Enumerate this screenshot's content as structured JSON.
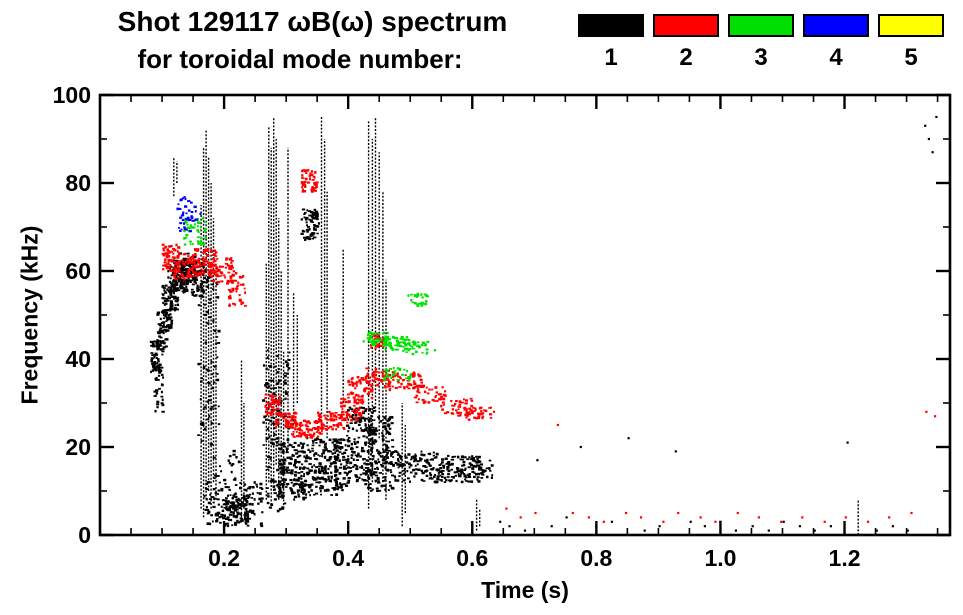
{
  "chart_data": {
    "type": "scatter",
    "title_line1": "Shot 129117 ωB(ω) spectrum",
    "title_line2": "for toroidal mode number:",
    "xlabel": "Time (s)",
    "ylabel": "Frequency (kHz)",
    "xlim": [
      0.0,
      1.37
    ],
    "ylim": [
      0,
      100
    ],
    "grid": false,
    "legend_position": "top-right",
    "xticks": {
      "major": [
        0.2,
        0.4,
        0.6,
        0.8,
        1.0,
        1.2
      ],
      "labels": [
        "0.2",
        "0.4",
        "0.6",
        "0.8",
        "1.0",
        "1.2"
      ],
      "minor_step": 0.05
    },
    "yticks": {
      "major": [
        0,
        20,
        40,
        60,
        80,
        100
      ],
      "labels": [
        "0",
        "20",
        "40",
        "60",
        "80",
        "100"
      ],
      "minor_step": 10
    },
    "legend": [
      {
        "label": "1",
        "color": "#000000"
      },
      {
        "label": "2",
        "color": "#ff0000"
      },
      {
        "label": "3",
        "color": "#00e000"
      },
      {
        "label": "4",
        "color": "#0000ff"
      },
      {
        "label": "5",
        "color": "#ffff00"
      }
    ],
    "series": [
      {
        "name": "mode-1",
        "color": "#000000",
        "blobs": [
          [
            0.082,
            0.097,
            37,
            44,
            45
          ],
          [
            0.088,
            0.102,
            28,
            39,
            35
          ],
          [
            0.092,
            0.108,
            41,
            51,
            55
          ],
          [
            0.101,
            0.116,
            46,
            57,
            65
          ],
          [
            0.11,
            0.126,
            51,
            61,
            70
          ],
          [
            0.118,
            0.142,
            55,
            63,
            90
          ],
          [
            0.13,
            0.156,
            57,
            64,
            80
          ],
          [
            0.148,
            0.17,
            54,
            63,
            60
          ],
          [
            0.158,
            0.192,
            20,
            62,
            70
          ],
          [
            0.168,
            0.262,
            2,
            12,
            160
          ],
          [
            0.198,
            0.238,
            3,
            9,
            70
          ],
          [
            0.178,
            0.225,
            12,
            20,
            20
          ],
          [
            0.263,
            0.306,
            20,
            42,
            90
          ],
          [
            0.27,
            0.302,
            5,
            18,
            40
          ],
          [
            0.288,
            0.332,
            8,
            21,
            160
          ],
          [
            0.328,
            0.382,
            9,
            22,
            170
          ],
          [
            0.378,
            0.402,
            10,
            22,
            80
          ],
          [
            0.325,
            0.353,
            67,
            74,
            70
          ],
          [
            0.398,
            0.442,
            12,
            29,
            160
          ],
          [
            0.428,
            0.472,
            10,
            27,
            160
          ],
          [
            0.468,
            0.552,
            12,
            19,
            130
          ],
          [
            0.548,
            0.618,
            12,
            18,
            110
          ],
          [
            0.6,
            0.635,
            13,
            17,
            30
          ]
        ],
        "vlines": [
          [
            0.119,
            77,
            86
          ],
          [
            0.124,
            80,
            85
          ],
          [
            0.163,
            6,
            75
          ],
          [
            0.167,
            4,
            88
          ],
          [
            0.171,
            8,
            92
          ],
          [
            0.175,
            10,
            86
          ],
          [
            0.179,
            6,
            80
          ],
          [
            0.183,
            12,
            72
          ],
          [
            0.187,
            8,
            62
          ],
          [
            0.228,
            4,
            40
          ],
          [
            0.232,
            6,
            30
          ],
          [
            0.268,
            8,
            62
          ],
          [
            0.272,
            12,
            93
          ],
          [
            0.276,
            6,
            88
          ],
          [
            0.28,
            10,
            95
          ],
          [
            0.284,
            16,
            90
          ],
          [
            0.288,
            8,
            72
          ],
          [
            0.292,
            12,
            60
          ],
          [
            0.296,
            6,
            42
          ],
          [
            0.303,
            20,
            88
          ],
          [
            0.312,
            25,
            55
          ],
          [
            0.318,
            30,
            50
          ],
          [
            0.357,
            25,
            95
          ],
          [
            0.362,
            40,
            90
          ],
          [
            0.366,
            22,
            78
          ],
          [
            0.392,
            30,
            65
          ],
          [
            0.433,
            6,
            94
          ],
          [
            0.439,
            12,
            90
          ],
          [
            0.444,
            28,
            95
          ],
          [
            0.45,
            22,
            87
          ],
          [
            0.456,
            12,
            78
          ],
          [
            0.461,
            8,
            58
          ],
          [
            0.487,
            2,
            30
          ],
          [
            0.492,
            5,
            25
          ],
          [
            0.607,
            1,
            8
          ],
          [
            0.612,
            2,
            6
          ],
          [
            1.222,
            0,
            8
          ]
        ],
        "points": [
          [
            0.645,
            3
          ],
          [
            0.66,
            2
          ],
          [
            0.685,
            1
          ],
          [
            0.705,
            17
          ],
          [
            0.728,
            2
          ],
          [
            0.752,
            4
          ],
          [
            0.775,
            20
          ],
          [
            0.8,
            2
          ],
          [
            0.825,
            3
          ],
          [
            0.852,
            22
          ],
          [
            0.878,
            1
          ],
          [
            0.902,
            2
          ],
          [
            0.928,
            19
          ],
          [
            0.952,
            3
          ],
          [
            0.975,
            2
          ],
          [
            1.0,
            3
          ],
          [
            1.025,
            1
          ],
          [
            1.052,
            2
          ],
          [
            1.078,
            1
          ],
          [
            1.102,
            3
          ],
          [
            1.128,
            2
          ],
          [
            1.152,
            1
          ],
          [
            1.178,
            2
          ],
          [
            1.205,
            21
          ],
          [
            1.252,
            1
          ],
          [
            1.278,
            2
          ],
          [
            1.302,
            1
          ],
          [
            1.33,
            93
          ],
          [
            1.336,
            90
          ],
          [
            1.342,
            87
          ],
          [
            1.348,
            95
          ]
        ]
      },
      {
        "name": "mode-2",
        "color": "#ff0000",
        "blobs": [
          [
            0.1,
            0.128,
            60,
            66,
            55
          ],
          [
            0.118,
            0.158,
            58,
            64,
            70
          ],
          [
            0.148,
            0.188,
            59,
            65,
            70
          ],
          [
            0.178,
            0.215,
            57,
            63,
            55
          ],
          [
            0.205,
            0.235,
            52,
            61,
            40
          ],
          [
            0.325,
            0.352,
            78,
            83,
            50
          ],
          [
            0.266,
            0.29,
            27,
            32,
            45
          ],
          [
            0.283,
            0.32,
            24,
            28,
            55
          ],
          [
            0.308,
            0.36,
            22,
            26,
            65
          ],
          [
            0.348,
            0.4,
            24,
            28,
            65
          ],
          [
            0.388,
            0.425,
            26,
            31,
            45
          ],
          [
            0.398,
            0.44,
            31,
            36,
            55
          ],
          [
            0.428,
            0.468,
            33,
            38,
            55
          ],
          [
            0.43,
            0.458,
            42,
            46,
            25
          ],
          [
            0.465,
            0.52,
            33,
            37,
            55
          ],
          [
            0.508,
            0.558,
            30,
            34,
            45
          ],
          [
            0.548,
            0.6,
            27,
            31,
            45
          ],
          [
            0.588,
            0.632,
            26,
            29,
            35
          ]
        ],
        "vlines": [],
        "points": [
          [
            0.635,
            28
          ],
          [
            0.655,
            6
          ],
          [
            0.678,
            4
          ],
          [
            0.702,
            5
          ],
          [
            0.738,
            25
          ],
          [
            0.762,
            5
          ],
          [
            0.788,
            4
          ],
          [
            0.812,
            3
          ],
          [
            0.848,
            5
          ],
          [
            0.872,
            4
          ],
          [
            0.908,
            3
          ],
          [
            0.932,
            5
          ],
          [
            0.968,
            4
          ],
          [
            0.992,
            3
          ],
          [
            1.028,
            5
          ],
          [
            1.062,
            4
          ],
          [
            1.098,
            3
          ],
          [
            1.132,
            4
          ],
          [
            1.168,
            3
          ],
          [
            1.202,
            4
          ],
          [
            1.238,
            3
          ],
          [
            1.272,
            4
          ],
          [
            1.308,
            5
          ],
          [
            1.332,
            28
          ],
          [
            1.346,
            27
          ]
        ]
      },
      {
        "name": "mode-3",
        "color": "#00e000",
        "blobs": [
          [
            0.135,
            0.172,
            66,
            72,
            45
          ],
          [
            0.432,
            0.468,
            43,
            46,
            40
          ],
          [
            0.458,
            0.5,
            42,
            45,
            40
          ],
          [
            0.488,
            0.532,
            41,
            44,
            35
          ],
          [
            0.495,
            0.528,
            52,
            55,
            25
          ],
          [
            0.455,
            0.502,
            35,
            38,
            30
          ]
        ],
        "vlines": [],
        "points": [
          [
            0.425,
            44
          ],
          [
            0.54,
            42
          ],
          [
            0.52,
            54
          ]
        ]
      },
      {
        "name": "mode-4",
        "color": "#0000ff",
        "blobs": [
          [
            0.125,
            0.158,
            69,
            77,
            40
          ]
        ],
        "vlines": [],
        "points": [
          [
            0.162,
            73
          ]
        ]
      },
      {
        "name": "mode-5",
        "color": "#ffff00",
        "blobs": [],
        "vlines": [],
        "points": []
      }
    ]
  }
}
